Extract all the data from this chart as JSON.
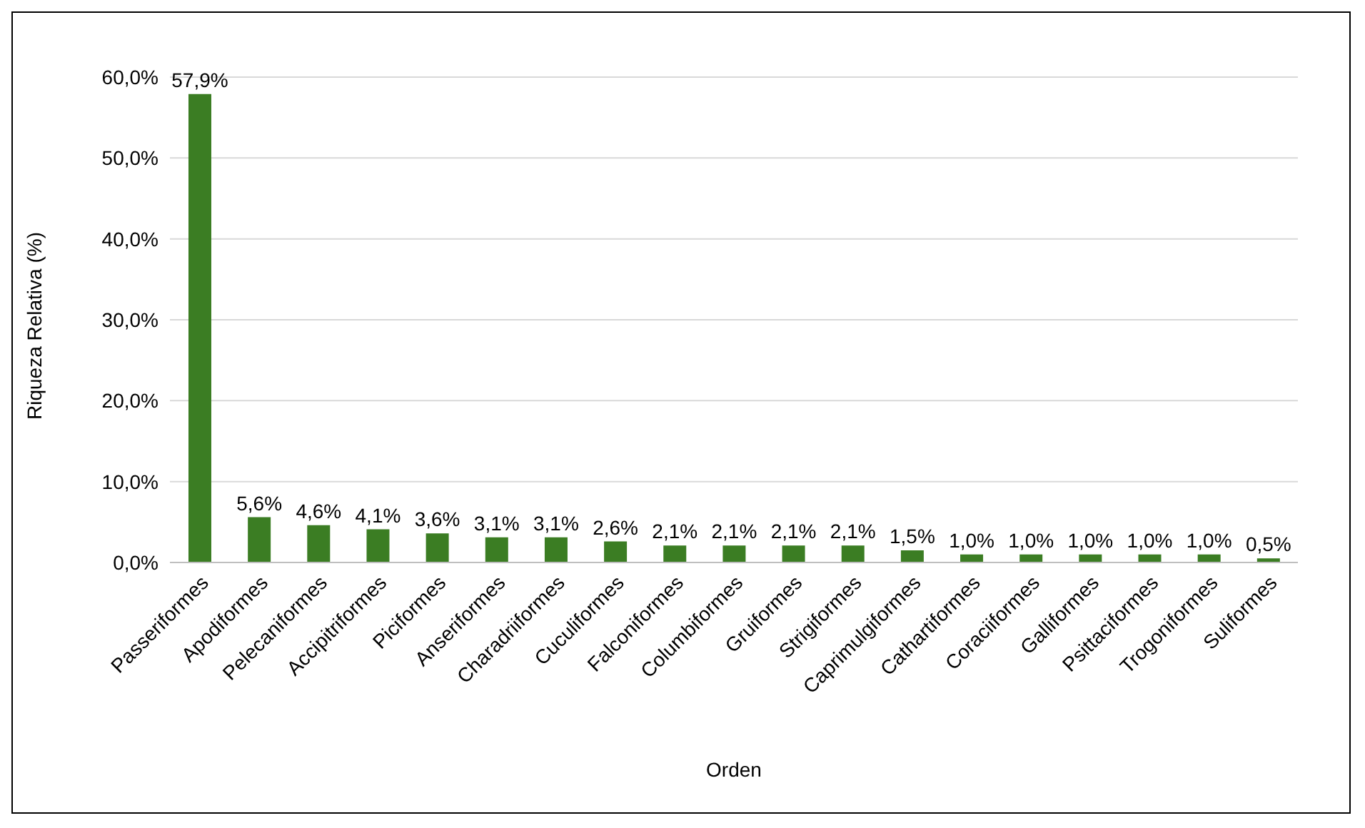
{
  "chart_data": {
    "type": "bar",
    "xlabel": "Orden",
    "ylabel": "Riqueza Relativa (%)",
    "categories": [
      "Passeriformes",
      "Apodiformes",
      "Pelecaniformes",
      "Accipitriformes",
      "Piciformes",
      "Anseriformes",
      "Charadriiformes",
      "Cuculiformes",
      "Falconiformes",
      "Columbiformes",
      "Gruiformes",
      "Strigiformes",
      "Caprimulgiformes",
      "Cathartiformes",
      "Coraciiformes",
      "Galliformes",
      "Psittaciformes",
      "Trogoniformes",
      "Suliformes"
    ],
    "values": [
      57.9,
      5.6,
      4.6,
      4.1,
      3.6,
      3.1,
      3.1,
      2.6,
      2.1,
      2.1,
      2.1,
      2.1,
      1.5,
      1.0,
      1.0,
      1.0,
      1.0,
      1.0,
      0.5
    ],
    "value_labels": [
      "57,9%",
      "5,6%",
      "4,6%",
      "4,1%",
      "3,6%",
      "3,1%",
      "3,1%",
      "2,6%",
      "2,1%",
      "2,1%",
      "2,1%",
      "2,1%",
      "1,5%",
      "1,0%",
      "1,0%",
      "1,0%",
      "1,0%",
      "1,0%",
      "0,5%"
    ],
    "color": "#3b7d23",
    "ylim": [
      0,
      60
    ],
    "yticks": [
      {
        "value": 0,
        "label": "0,0%"
      },
      {
        "value": 10,
        "label": "10,0%"
      },
      {
        "value": 20,
        "label": "20,0%"
      },
      {
        "value": 30,
        "label": "30,0%"
      },
      {
        "value": 40,
        "label": "40,0%"
      },
      {
        "value": 50,
        "label": "50,0%"
      },
      {
        "value": 60,
        "label": "60,0%"
      }
    ],
    "grid": "y",
    "legend": false
  }
}
